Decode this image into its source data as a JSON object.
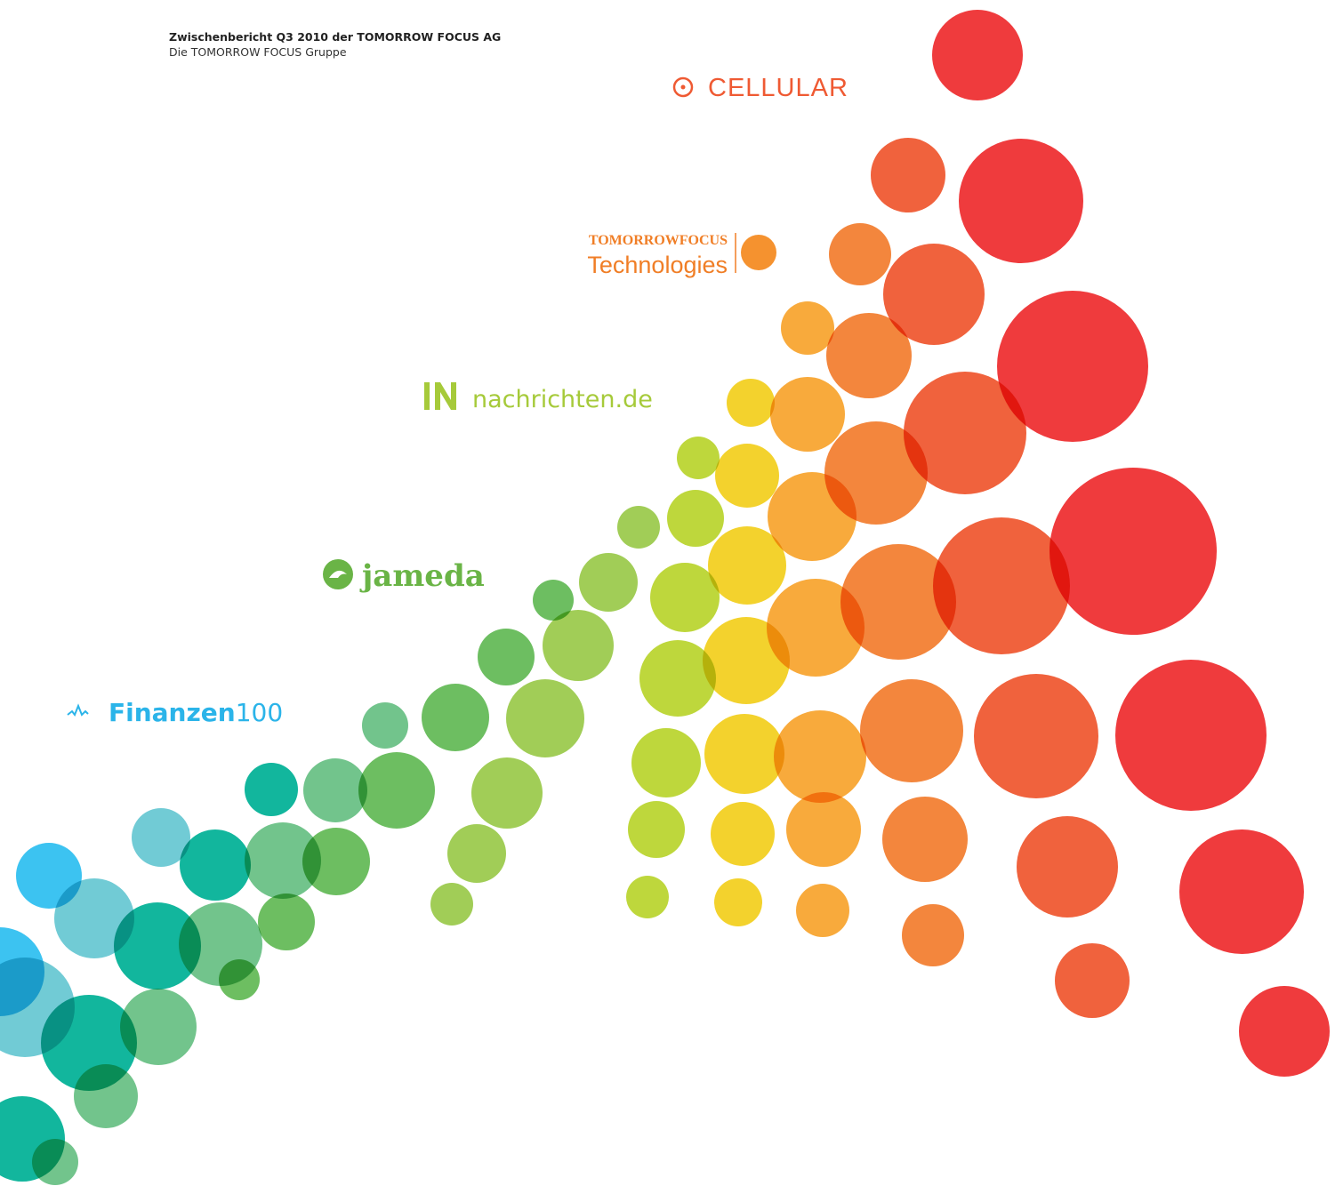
{
  "header": {
    "title": "Zwischenbericht Q3 2010 der TOMORROW FOCUS AG",
    "subtitle": "Die TOMORROW FOCUS Gruppe"
  },
  "logos": {
    "cellular": "CELLULAR",
    "tomorrow_focus": "TOMORROWFOCUS",
    "technologies": "Technologies",
    "nachrichten": "nachrichten.de",
    "jameda": "jameda",
    "finanzen": "Finanzen",
    "finanzen_suffix": "100"
  }
}
